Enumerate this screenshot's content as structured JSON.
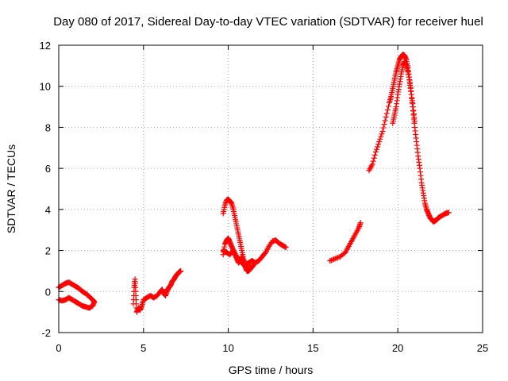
{
  "chart_data": {
    "type": "scatter",
    "title": "Day 080 of 2017, Sidereal Day-to-day VTEC variation (SDTVAR) for receiver huel",
    "xlabel": "GPS time / hours",
    "ylabel": "SDTVAR / TECUs",
    "xlim": [
      0,
      25
    ],
    "ylim": [
      -2,
      12
    ],
    "xticks": [
      0,
      5,
      10,
      15,
      20,
      25
    ],
    "yticks": [
      -2,
      0,
      2,
      4,
      6,
      8,
      10,
      12
    ],
    "xtick_labels": [
      "0",
      "5",
      "10",
      "15",
      "20",
      "25"
    ],
    "ytick_labels": [
      "-2",
      "0",
      "2",
      "4",
      "6",
      "8",
      "10",
      "12"
    ],
    "grid": true,
    "marker": "+",
    "series": [
      {
        "name": "SDTVAR",
        "color": "#ff0000",
        "segments": [
          {
            "x": [
              0.0,
              0.2,
              0.4,
              0.6,
              0.8,
              1.0,
              1.2,
              1.4,
              1.6,
              1.8,
              2.0,
              2.1,
              2.0,
              1.8,
              1.6,
              1.4,
              1.2,
              1.0,
              0.8,
              0.6,
              0.4,
              0.2,
              0.0
            ],
            "y": [
              0.2,
              0.3,
              0.4,
              0.45,
              0.35,
              0.25,
              0.15,
              0.0,
              -0.1,
              -0.25,
              -0.4,
              -0.5,
              -0.7,
              -0.8,
              -0.75,
              -0.7,
              -0.6,
              -0.5,
              -0.4,
              -0.3,
              -0.4,
              -0.45,
              -0.4
            ]
          },
          {
            "x": [
              4.4,
              4.45,
              4.5,
              4.55,
              4.6,
              4.7,
              4.8,
              4.9,
              5.0,
              5.2,
              5.4,
              5.6,
              5.8,
              6.0,
              6.1,
              6.2,
              6.3,
              6.4,
              6.5,
              6.6,
              6.7,
              6.8,
              6.9,
              7.0,
              7.1,
              7.2
            ],
            "y": [
              -0.6,
              0.2,
              0.6,
              -0.2,
              -1.0,
              -0.8,
              -0.9,
              -0.7,
              -0.4,
              -0.3,
              -0.2,
              -0.3,
              -0.2,
              0.0,
              0.1,
              -0.1,
              -0.2,
              0.05,
              0.2,
              0.3,
              0.5,
              0.6,
              0.75,
              0.85,
              0.95,
              1.0
            ]
          },
          {
            "x": [
              9.7,
              9.8,
              9.9,
              10.0,
              10.1,
              10.2,
              10.3,
              10.4,
              10.5,
              10.6,
              10.7,
              10.8,
              10.9,
              11.0,
              11.1,
              11.2,
              11.3,
              11.4,
              11.5
            ],
            "y": [
              3.8,
              4.2,
              4.45,
              4.5,
              4.4,
              4.3,
              4.0,
              3.6,
              3.2,
              2.8,
              2.4,
              2.0,
              1.6,
              1.2,
              1.0,
              1.0,
              1.1,
              1.2,
              1.3
            ]
          },
          {
            "x": [
              9.7,
              9.8,
              9.9,
              10.0,
              10.1,
              10.2,
              10.3,
              10.4,
              10.5,
              10.6,
              10.7,
              10.8,
              10.9,
              11.0,
              11.2,
              11.4,
              11.6,
              11.8,
              12.0,
              12.2,
              12.4,
              12.6,
              12.8,
              13.0,
              13.2,
              13.4
            ],
            "y": [
              1.8,
              2.3,
              2.5,
              2.6,
              2.4,
              2.2,
              2.0,
              1.8,
              1.6,
              1.4,
              1.5,
              1.7,
              1.5,
              1.3,
              1.4,
              1.5,
              1.4,
              1.5,
              1.7,
              1.9,
              2.2,
              2.45,
              2.5,
              2.35,
              2.25,
              2.15
            ]
          },
          {
            "x": [
              9.7,
              9.9,
              10.1,
              10.3,
              10.5,
              10.7,
              10.9,
              11.1,
              11.3
            ],
            "y": [
              2.0,
              1.9,
              1.8,
              2.0,
              1.7,
              1.5,
              1.3,
              1.2,
              1.2
            ]
          },
          {
            "x": [
              16.0,
              16.3,
              16.6,
              16.9,
              17.1,
              17.3,
              17.5,
              17.7,
              17.8
            ],
            "y": [
              1.5,
              1.6,
              1.7,
              1.9,
              2.2,
              2.5,
              2.8,
              3.1,
              3.35
            ]
          },
          {
            "x": [
              18.3,
              18.5,
              18.7,
              18.9,
              19.1,
              19.3,
              19.5,
              19.6,
              19.7,
              19.8,
              19.9,
              20.0,
              20.1,
              20.2,
              20.3,
              20.4,
              20.5,
              20.6,
              20.7,
              20.8,
              20.9,
              21.0,
              21.1,
              21.2,
              21.3,
              21.4,
              21.5,
              21.6,
              21.7,
              21.8,
              21.9,
              22.0,
              22.1,
              22.2,
              22.3,
              22.4,
              22.6,
              22.8,
              23.0
            ],
            "y": [
              5.9,
              6.2,
              6.8,
              7.3,
              7.8,
              8.5,
              9.2,
              9.5,
              9.9,
              10.3,
              10.7,
              11.0,
              11.3,
              11.45,
              11.55,
              11.5,
              11.3,
              10.9,
              10.3,
              9.6,
              8.8,
              8.0,
              7.3,
              6.6,
              6.0,
              5.3,
              4.8,
              4.3,
              4.0,
              3.8,
              3.6,
              3.5,
              3.4,
              3.45,
              3.5,
              3.6,
              3.7,
              3.8,
              3.85
            ]
          },
          {
            "x": [
              19.7,
              19.8,
              19.9,
              20.0,
              20.1,
              20.2,
              20.3,
              20.4,
              20.5,
              20.6,
              20.7,
              20.8,
              20.9,
              21.0
            ],
            "y": [
              8.2,
              8.6,
              9.0,
              9.6,
              10.1,
              10.6,
              11.0,
              11.2,
              11.0,
              10.7,
              10.2,
              9.6,
              9.0,
              8.3
            ]
          }
        ]
      }
    ]
  }
}
